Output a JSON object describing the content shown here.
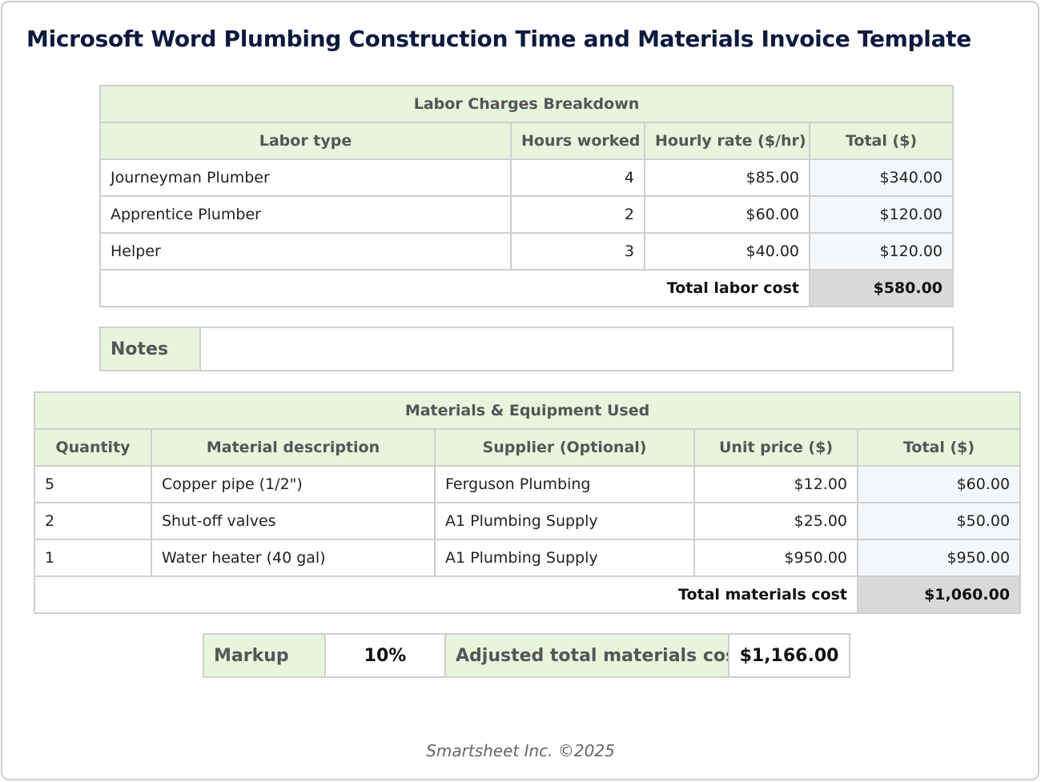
{
  "title": "Microsoft Word Plumbing Construction Time and Materials Invoice Template",
  "labor": {
    "heading": "Labor Charges Breakdown",
    "columns": [
      "Labor type",
      "Hours worked",
      "Hourly rate ($/hr)",
      "Total ($)"
    ],
    "rows": [
      [
        "Journeyman Plumber",
        "4",
        "$85.00",
        "$340.00"
      ],
      [
        "Apprentice Plumber",
        "2",
        "$60.00",
        "$120.00"
      ],
      [
        "Helper",
        "3",
        "$40.00",
        "$120.00"
      ]
    ],
    "total_label": "Total labor cost",
    "total_value": "$580.00"
  },
  "notes": {
    "label": "Notes",
    "value": ""
  },
  "materials": {
    "heading": "Materials & Equipment Used",
    "columns": [
      "Quantity",
      "Material description",
      "Supplier (Optional)",
      "Unit price ($)",
      "Total ($)"
    ],
    "rows": [
      [
        "5",
        "Copper pipe (1/2\")",
        "Ferguson Plumbing",
        "$12.00",
        "$60.00"
      ],
      [
        "2",
        "Shut-off valves",
        "A1 Plumbing Supply",
        "$25.00",
        "$50.00"
      ],
      [
        "1",
        "Water heater (40 gal)",
        "A1 Plumbing Supply",
        "$950.00",
        "$950.00"
      ]
    ],
    "total_label": "Total materials cost",
    "total_value": "$1,060.00"
  },
  "summary": {
    "markup_label": "Markup",
    "markup_value": "10%",
    "adjusted_label": "Adjusted total materials cost",
    "adjusted_value": "$1,166.00"
  },
  "footer": "Smartsheet Inc. ©2025"
}
